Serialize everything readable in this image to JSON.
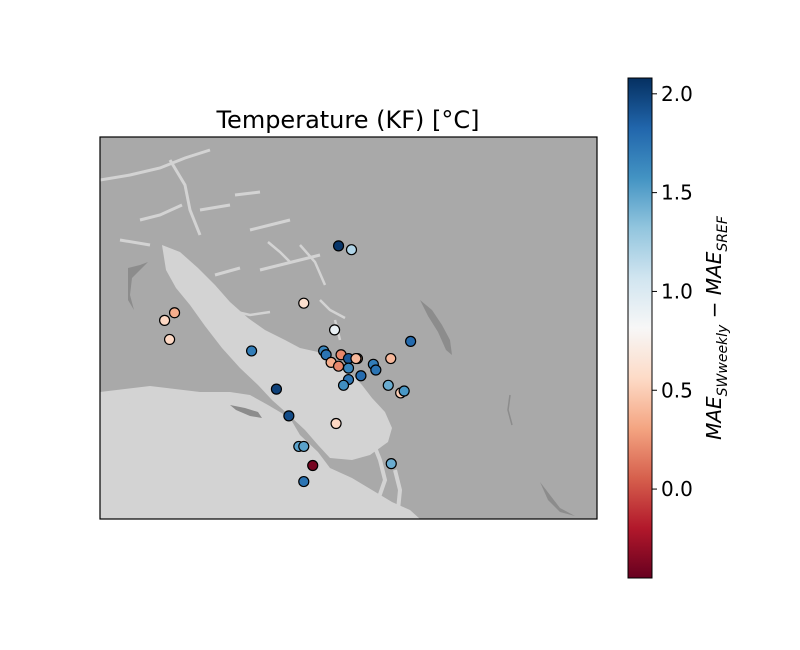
{
  "chart_data": {
    "type": "scatter",
    "title": "Temperature (KF) [°C]",
    "colorbar": {
      "label_main": "MAE",
      "label_sub1": "SWweekly",
      "label_mid": " − MAE",
      "label_sub2": "SREF",
      "range": [
        -0.45,
        2.08
      ],
      "ticks": [
        "0.0",
        "0.5",
        "1.0",
        "1.5",
        "2.0"
      ],
      "colormap": "RdBu"
    },
    "colors": {
      "land": "#a9a9a9",
      "water": "#d3d3d3",
      "frame": "#000000"
    },
    "grid": false,
    "points": [
      {
        "x": 0.48,
        "y": 0.715,
        "value": 2.05
      },
      {
        "x": 0.506,
        "y": 0.705,
        "value": 1.2
      },
      {
        "x": 0.13,
        "y": 0.52,
        "value": 0.55
      },
      {
        "x": 0.15,
        "y": 0.54,
        "value": 0.35
      },
      {
        "x": 0.14,
        "y": 0.47,
        "value": 0.55
      },
      {
        "x": 0.41,
        "y": 0.565,
        "value": 0.6
      },
      {
        "x": 0.472,
        "y": 0.495,
        "value": 0.9
      },
      {
        "x": 0.305,
        "y": 0.44,
        "value": 1.7
      },
      {
        "x": 0.45,
        "y": 0.44,
        "value": 1.65
      },
      {
        "x": 0.455,
        "y": 0.43,
        "value": 1.75
      },
      {
        "x": 0.485,
        "y": 0.43,
        "value": 0.2
      },
      {
        "x": 0.5,
        "y": 0.42,
        "value": 1.9
      },
      {
        "x": 0.518,
        "y": 0.42,
        "value": 0.3
      },
      {
        "x": 0.515,
        "y": 0.42,
        "value": 0.4
      },
      {
        "x": 0.465,
        "y": 0.41,
        "value": 0.35
      },
      {
        "x": 0.48,
        "y": 0.4,
        "value": 0.2
      },
      {
        "x": 0.5,
        "y": 0.395,
        "value": 1.65
      },
      {
        "x": 0.525,
        "y": 0.375,
        "value": 1.8
      },
      {
        "x": 0.5,
        "y": 0.365,
        "value": 1.75
      },
      {
        "x": 0.49,
        "y": 0.35,
        "value": 1.6
      },
      {
        "x": 0.55,
        "y": 0.405,
        "value": 1.7
      },
      {
        "x": 0.555,
        "y": 0.39,
        "value": 1.75
      },
      {
        "x": 0.58,
        "y": 0.35,
        "value": 1.45
      },
      {
        "x": 0.585,
        "y": 0.42,
        "value": 0.4
      },
      {
        "x": 0.625,
        "y": 0.465,
        "value": 1.8
      },
      {
        "x": 0.605,
        "y": 0.33,
        "value": 0.5
      },
      {
        "x": 0.612,
        "y": 0.335,
        "value": 1.55
      },
      {
        "x": 0.355,
        "y": 0.34,
        "value": 2.0
      },
      {
        "x": 0.38,
        "y": 0.27,
        "value": 1.95
      },
      {
        "x": 0.475,
        "y": 0.25,
        "value": 0.55
      },
      {
        "x": 0.4,
        "y": 0.19,
        "value": 1.5
      },
      {
        "x": 0.41,
        "y": 0.19,
        "value": 1.5
      },
      {
        "x": 0.428,
        "y": 0.14,
        "value": -0.4
      },
      {
        "x": 0.586,
        "y": 0.145,
        "value": 1.45
      },
      {
        "x": 0.41,
        "y": 0.098,
        "value": 1.75
      }
    ]
  }
}
